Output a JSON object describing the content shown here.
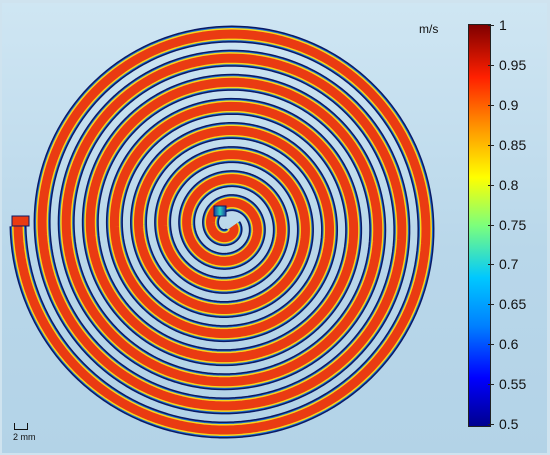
{
  "figure": {
    "colorbar_unit": "m/s",
    "colorbar_ticks": [
      "1",
      "0.95",
      "0.9",
      "0.85",
      "0.8",
      "0.75",
      "0.7",
      "0.65",
      "0.6",
      "0.55",
      "0.5"
    ],
    "colorbar_range": [
      0.5,
      1
    ],
    "scale_bar_label": "2 mm",
    "colors": {
      "background": "#c3dcec",
      "channel_core": "#e32612",
      "channel_edge": "#0a1a66",
      "gap": "#b9d7ea"
    }
  }
}
